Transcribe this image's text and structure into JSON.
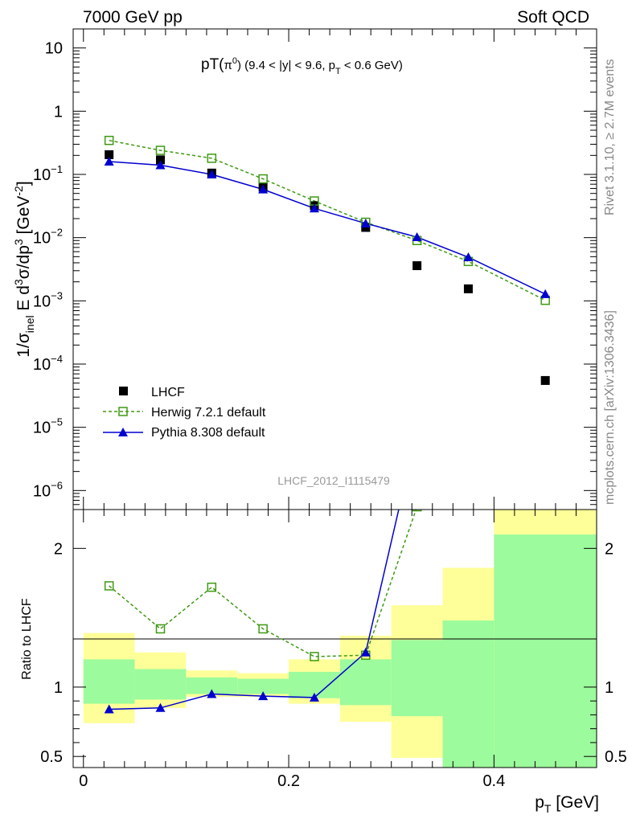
{
  "header": {
    "left": "7000 GeV pp",
    "right": "Soft QCD"
  },
  "side": {
    "rivet": "Rivet 3.1.10, ≥ 2.7M events",
    "mcplots": "mcplots.cern.ch [arXiv:1306.3436]"
  },
  "analysis_id": "LHCF_2012_I1115479",
  "title": {
    "main": "pT(",
    "pi": "π",
    "zero": "0",
    "paren": ")",
    "range": " (9.4 < |y| < 9.6, p",
    "sub": "T",
    "tail": " < 0.6 GeV)"
  },
  "ylabel_top": {
    "a": "1/σ",
    "sub": "inel",
    "b": " E d",
    "sup1": "3",
    "c": "σ/dp",
    "sup2": "3",
    "d": " [GeV",
    "sup3": "-2",
    "e": "]"
  },
  "ylabel_bottom": "Ratio to LHCF",
  "xlabel": {
    "a": "p",
    "sub": "T",
    "b": " [GeV]"
  },
  "legend": {
    "placement": "lower-left",
    "entries": [
      "LHCF",
      "Herwig 7.2.1 default",
      "Pythia 8.308 default"
    ]
  },
  "colors": {
    "data": "#000000",
    "herwig": "#3e9a12",
    "pythia": "#0000d0",
    "band_inner": "#9cfb9c",
    "band_outer": "#ffff99"
  },
  "chart_data": [
    {
      "type": "scatter",
      "panel": "main",
      "xlim": [
        -0.01,
        0.5
      ],
      "ylim": [
        5e-07,
        20
      ],
      "log_y": true,
      "yticks": [
        {
          "v": 1e-06,
          "b": "10",
          "e": "−6"
        },
        {
          "v": 1e-05,
          "b": "10",
          "e": "−5"
        },
        {
          "v": 0.0001,
          "b": "10",
          "e": "−4"
        },
        {
          "v": 0.001,
          "b": "10",
          "e": "−3"
        },
        {
          "v": 0.01,
          "b": "10",
          "e": "−2"
        },
        {
          "v": 0.1,
          "b": "10",
          "e": "−1"
        },
        {
          "v": 1,
          "b": "1",
          "e": ""
        },
        {
          "v": 10,
          "b": "10",
          "e": ""
        }
      ],
      "series": [
        {
          "name": "LHCF",
          "x": [
            0.025,
            0.075,
            0.125,
            0.175,
            0.225,
            0.275,
            0.325,
            0.375,
            0.45
          ],
          "y": [
            0.205,
            0.17,
            0.105,
            0.063,
            0.032,
            0.0145,
            0.0036,
            0.00155,
            5.5e-05
          ]
        },
        {
          "name": "Herwig 7.2.1 default",
          "x": [
            0.025,
            0.075,
            0.125,
            0.175,
            0.225,
            0.275,
            0.325,
            0.375,
            0.45
          ],
          "y": [
            0.345,
            0.24,
            0.18,
            0.085,
            0.038,
            0.0175,
            0.009,
            0.0042,
            0.00102
          ]
        },
        {
          "name": "Pythia 8.308 default",
          "x": [
            0.025,
            0.075,
            0.125,
            0.175,
            0.225,
            0.275,
            0.325,
            0.375,
            0.45
          ],
          "y": [
            0.16,
            0.14,
            0.1,
            0.058,
            0.029,
            0.0168,
            0.0102,
            0.0049,
            0.00128
          ]
        }
      ]
    },
    {
      "type": "line",
      "panel": "ratio",
      "xlim": [
        -0.01,
        0.5
      ],
      "ylim": [
        0.42,
        2.28
      ],
      "xticks": [
        {
          "v": 0,
          "label": "0"
        },
        {
          "v": 0.2,
          "label": "0.2"
        },
        {
          "v": 0.4,
          "label": "0.4"
        }
      ],
      "yticks": [
        {
          "v": 0.5,
          "label": "0.5"
        },
        {
          "v": 1,
          "label": "1"
        },
        {
          "v": 2,
          "label": "2"
        }
      ],
      "bands": [
        {
          "x0": 0.0,
          "x1": 0.05,
          "inner": [
            0.88,
            1.2
          ],
          "outer": [
            0.74,
            1.39
          ]
        },
        {
          "x0": 0.05,
          "x1": 0.1,
          "inner": [
            0.91,
            1.13
          ],
          "outer": [
            0.85,
            1.25
          ]
        },
        {
          "x0": 0.1,
          "x1": 0.15,
          "inner": [
            0.95,
            1.07
          ],
          "outer": [
            0.93,
            1.12
          ]
        },
        {
          "x0": 0.15,
          "x1": 0.2,
          "inner": [
            0.95,
            1.06
          ],
          "outer": [
            0.93,
            1.1
          ]
        },
        {
          "x0": 0.2,
          "x1": 0.25,
          "inner": [
            0.92,
            1.11
          ],
          "outer": [
            0.88,
            1.2
          ]
        },
        {
          "x0": 0.25,
          "x1": 0.3,
          "inner": [
            0.87,
            1.2
          ],
          "outer": [
            0.75,
            1.37
          ]
        },
        {
          "x0": 0.3,
          "x1": 0.35,
          "inner": [
            0.79,
            1.34
          ],
          "outer": [
            0.49,
            1.59
          ]
        },
        {
          "x0": 0.35,
          "x1": 0.4,
          "inner": [
            0.42,
            1.48
          ],
          "outer": [
            0.42,
            1.86
          ]
        },
        {
          "x0": 0.4,
          "x1": 0.5,
          "inner": [
            0.42,
            2.1
          ],
          "outer": [
            0.42,
            2.28
          ]
        }
      ],
      "series": [
        {
          "name": "Herwig 7.2.1 default",
          "x": [
            0.025,
            0.075,
            0.125,
            0.175,
            0.225,
            0.275,
            0.325
          ],
          "y": [
            1.73,
            1.42,
            1.72,
            1.42,
            1.22,
            1.23,
            2.3
          ]
        },
        {
          "name": "Pythia 8.308 default",
          "x": [
            0.025,
            0.075,
            0.125,
            0.175,
            0.225,
            0.275,
            0.325
          ],
          "y": [
            0.84,
            0.85,
            0.95,
            0.935,
            0.925,
            1.25,
            2.85
          ]
        }
      ]
    }
  ]
}
